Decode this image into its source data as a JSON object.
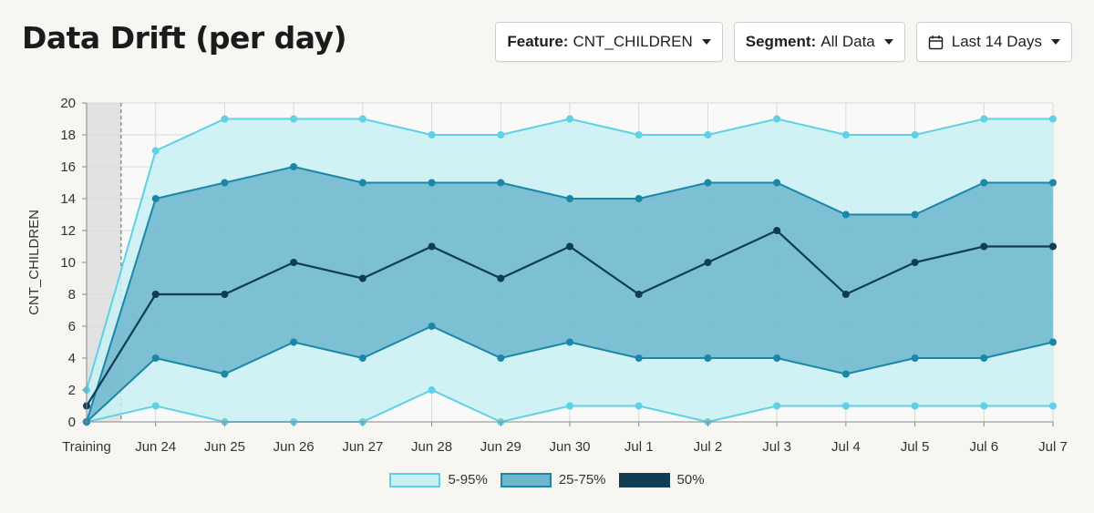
{
  "header": {
    "title": "Data Drift (per day)"
  },
  "controls": {
    "feature": {
      "label": "Feature:",
      "value": "CNT_CHILDREN"
    },
    "segment": {
      "label": "Segment:",
      "value": "All Data"
    },
    "date_range": {
      "value": "Last 14 Days",
      "icon": "calendar-icon"
    }
  },
  "colors": {
    "band_5_95_fill": "#c9f1f4",
    "band_5_95_line": "#5fd0e6",
    "band_25_75_fill": "#6fb6cc",
    "band_25_75_line": "#1a86a8",
    "median_line": "#0f3d52",
    "training_shade": "#e2e2e2"
  },
  "chart_data": {
    "type": "area",
    "categories": [
      "Training",
      "Jun 24",
      "Jun 25",
      "Jun 26",
      "Jun 27",
      "Jun 28",
      "Jun 29",
      "Jun 30",
      "Jul 1",
      "Jul 2",
      "Jul 3",
      "Jul 4",
      "Jul 5",
      "Jul 6",
      "Jul 7"
    ],
    "ylabel": "CNT_CHILDREN",
    "ylim": [
      0,
      20
    ],
    "yticks": [
      0,
      2,
      4,
      6,
      8,
      10,
      12,
      14,
      16,
      18,
      20
    ],
    "grid": true,
    "legend_position": "bottom-center",
    "training_region": "Training",
    "series": [
      {
        "name": "5-95%",
        "kind": "band",
        "low": [
          0,
          1,
          0,
          0,
          0,
          2,
          0,
          1,
          1,
          0,
          1,
          1,
          1,
          1,
          1
        ],
        "high": [
          2,
          17,
          19,
          19,
          19,
          18,
          18,
          19,
          18,
          18,
          19,
          18,
          18,
          19,
          19
        ]
      },
      {
        "name": "25-75%",
        "kind": "band",
        "low": [
          0,
          4,
          3,
          5,
          4,
          6,
          4,
          5,
          4,
          4,
          4,
          3,
          4,
          4,
          5
        ],
        "high": [
          0,
          14,
          15,
          16,
          15,
          15,
          15,
          14,
          14,
          15,
          15,
          13,
          13,
          15,
          15
        ]
      },
      {
        "name": "50%",
        "kind": "line",
        "values": [
          1,
          8,
          8,
          10,
          9,
          11,
          9,
          11,
          8,
          10,
          12,
          8,
          10,
          11,
          11
        ]
      }
    ]
  }
}
